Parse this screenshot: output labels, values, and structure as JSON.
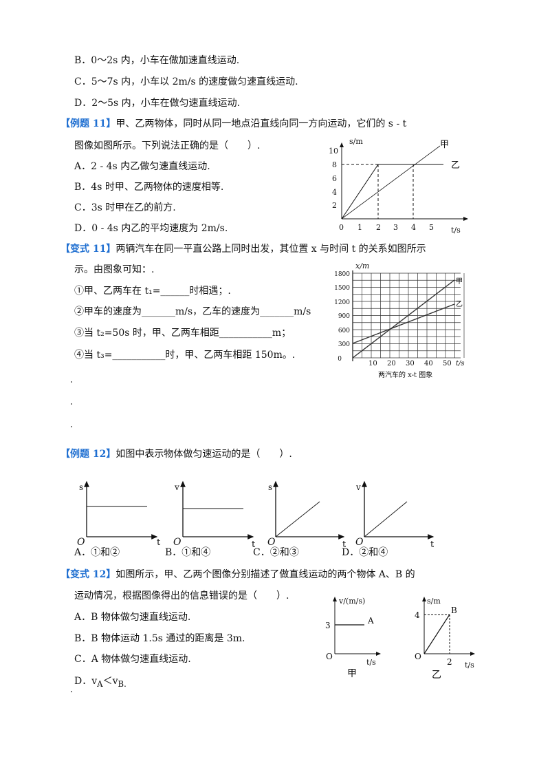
{
  "prev_options": [
    "B．0～2s 内，小车在做加速直线运动.",
    "C．5～7s 内，小车以 2m/s 的速度做匀速直线运动.",
    "D．2～5s 内，小车在做匀速直线运动."
  ],
  "ex11": {
    "tag": "【例题 11】",
    "stem1": "甲、乙两物体，同时从同一地点沿直线向同一方向运动，它们的 s - t",
    "stem2": "图像如图所示。下列说法正确的是（　　）.",
    "options": [
      "A．2 - 4s 内乙做匀速直线运动.",
      "B．4s 时甲、乙两物体的速度相等.",
      "C．3s 时甲在乙的前方.",
      "D．0 - 4s 内乙的平均速度为 2m/s."
    ],
    "figure": {
      "ylabel": "s/m",
      "xlabel": "t/s",
      "yticks": [
        "2",
        "4",
        "6",
        "8",
        "10"
      ],
      "xticks": [
        "0",
        "1",
        "2",
        "3",
        "4",
        "5"
      ],
      "line1": "甲",
      "line2": "乙"
    }
  },
  "var11": {
    "tag": "【变式 11】",
    "stem1": "两辆汽车在同一平直公路上同时出发，其位置 x 与时间 t 的关系如图所示",
    "stem2": "示。由图象可知：.",
    "items": [
      "①甲、乙两车在 t₁=______时相遇；.",
      "②甲车的速度为_______m/s，乙车的速度为_______m/s",
      "③当 t₂=50s 时，甲、乙两车相距___________m；",
      "④当 t₃=___________时，甲、乙两车相距 150m。."
    ],
    "figure": {
      "ylabel": "x/m",
      "xlabel": "t/s",
      "yticks": [
        "0",
        "300",
        "600",
        "900",
        "1200",
        "1500",
        "1800"
      ],
      "xticks": [
        "10",
        "20",
        "30",
        "40",
        "50"
      ],
      "line1": "甲",
      "line2": "乙",
      "caption": "两汽车的 x-t 图象"
    }
  },
  "ex12": {
    "tag": "【例题 12】",
    "stem": "如图中表示物体做匀速运动的是（　　）.",
    "graphs": [
      {
        "y": "s",
        "o": "O",
        "x": "t"
      },
      {
        "y": "v",
        "o": "O",
        "x": "t"
      },
      {
        "y": "s",
        "o": "O",
        "x": "t"
      },
      {
        "y": "v",
        "o": "O",
        "x": "t"
      }
    ],
    "options": [
      "A．①和②",
      "B．①和④",
      "C．②和③",
      "D．②和④"
    ]
  },
  "var12": {
    "tag": "【变式 12】",
    "stem1": "如图所示，甲、乙两个图像分别描述了做直线运动的两个物体 A、B 的",
    "stem2": "运动情况，根据图像得出的信息错误的是（　　）.",
    "options": [
      "A．B 物体做匀速直线运动.",
      "B．B 物体运动 1.5s 通过的距离是 3m.",
      "C．A 物体做匀速直线运动."
    ],
    "option_d": {
      "label": "D．",
      "v1": "v",
      "s1": "A",
      "op": "＜",
      "v2": "v",
      "s2": "B."
    },
    "fig1": {
      "ylabel": "v/(m/s)",
      "ytick": "3",
      "line": "A",
      "origin": "O",
      "xlabel": "t/s",
      "caption": "甲"
    },
    "fig2": {
      "ylabel": "s/m",
      "ytick": "4",
      "point": "B",
      "origin": "O",
      "xtick": "2",
      "xlabel": "t/s",
      "caption": "乙"
    }
  }
}
